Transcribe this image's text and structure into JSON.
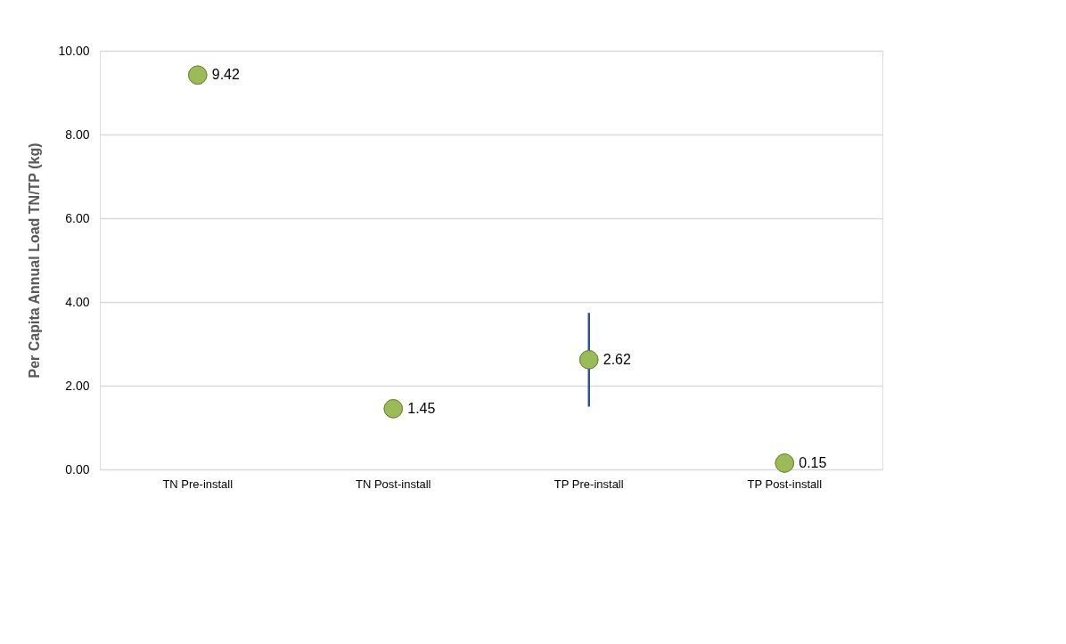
{
  "chart_data": {
    "type": "scatter",
    "ylabel": "Per Capita Annual Load TN/TP (kg)",
    "categories": [
      "TN Pre-install",
      "TN Post-install",
      "TP Pre-install",
      "TP Post-install"
    ],
    "values": [
      9.42,
      1.45,
      2.62,
      0.15
    ],
    "errors": [
      null,
      null,
      1.12,
      null
    ],
    "color": "#9bbb59",
    "ylim": [
      0,
      10
    ],
    "yticks": [
      {
        "value": 0,
        "label": "0.00"
      },
      {
        "value": 2,
        "label": "2.00"
      },
      {
        "value": 4,
        "label": "4.00"
      },
      {
        "value": 6,
        "label": "6.00"
      },
      {
        "value": 8,
        "label": "8.00"
      },
      {
        "value": 10,
        "label": "10.00"
      }
    ],
    "grid": "y",
    "data_labels": true,
    "marker": "circle"
  }
}
